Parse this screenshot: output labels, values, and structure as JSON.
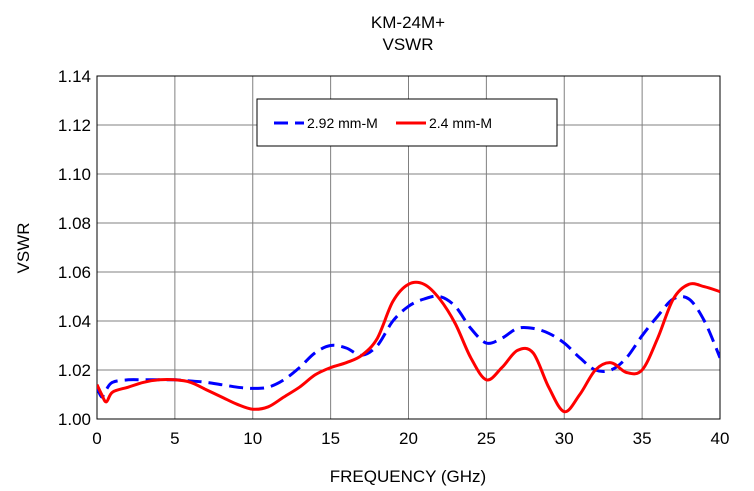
{
  "chart_data": {
    "type": "line",
    "title": [
      "KM-24M+",
      "VSWR"
    ],
    "xlabel": "FREQUENCY (GHz)",
    "ylabel": "VSWR",
    "xlim": [
      0,
      40
    ],
    "ylim": [
      1.0,
      1.14
    ],
    "xticks": [
      0,
      5,
      10,
      15,
      20,
      25,
      30,
      35,
      40
    ],
    "yticks": [
      1.0,
      1.02,
      1.04,
      1.06,
      1.08,
      1.1,
      1.12,
      1.14
    ],
    "xtick_labels": [
      "0",
      "5",
      "10",
      "15",
      "20",
      "25",
      "30",
      "35",
      "40"
    ],
    "ytick_labels": [
      "1.00",
      "1.02",
      "1.04",
      "1.06",
      "1.08",
      "1.10",
      "1.12",
      "1.14"
    ],
    "grid": true,
    "legend_position": "top-center",
    "series": [
      {
        "name": "2.92 mm-M",
        "color": "#0000ff",
        "style": "dashed",
        "x": [
          0,
          0.3,
          0.6,
          1,
          2,
          3,
          4,
          5,
          6,
          7,
          8,
          9,
          10,
          11,
          12,
          13,
          14,
          15,
          16,
          17,
          18,
          19,
          20,
          21,
          22,
          23,
          24,
          25,
          26,
          27,
          28,
          29,
          30,
          31,
          32,
          33,
          34,
          35,
          36,
          37,
          38,
          39,
          40
        ],
        "y": [
          1.013,
          1.009,
          1.012,
          1.015,
          1.016,
          1.016,
          1.016,
          1.016,
          1.0155,
          1.015,
          1.014,
          1.013,
          1.0125,
          1.013,
          1.016,
          1.021,
          1.027,
          1.03,
          1.029,
          1.026,
          1.03,
          1.04,
          1.046,
          1.049,
          1.05,
          1.046,
          1.037,
          1.031,
          1.033,
          1.037,
          1.037,
          1.035,
          1.031,
          1.025,
          1.02,
          1.02,
          1.025,
          1.034,
          1.042,
          1.049,
          1.049,
          1.04,
          1.025
        ]
      },
      {
        "name": "2.4 mm-M",
        "color": "#ff0000",
        "style": "solid",
        "x": [
          0,
          0.3,
          0.6,
          1,
          2,
          3,
          4,
          5,
          6,
          7,
          8,
          9,
          10,
          11,
          12,
          13,
          14,
          15,
          16,
          17,
          18,
          19,
          20,
          21,
          22,
          23,
          24,
          25,
          26,
          27,
          28,
          29,
          30,
          31,
          32,
          33,
          34,
          35,
          36,
          37,
          38,
          39,
          40
        ],
        "y": [
          1.014,
          1.01,
          1.007,
          1.011,
          1.013,
          1.015,
          1.016,
          1.016,
          1.015,
          1.012,
          1.009,
          1.006,
          1.004,
          1.005,
          1.009,
          1.013,
          1.018,
          1.021,
          1.023,
          1.026,
          1.033,
          1.048,
          1.055,
          1.055,
          1.049,
          1.039,
          1.025,
          1.016,
          1.021,
          1.028,
          1.027,
          1.013,
          1.003,
          1.01,
          1.02,
          1.023,
          1.019,
          1.02,
          1.033,
          1.049,
          1.055,
          1.054,
          1.052
        ]
      }
    ]
  }
}
